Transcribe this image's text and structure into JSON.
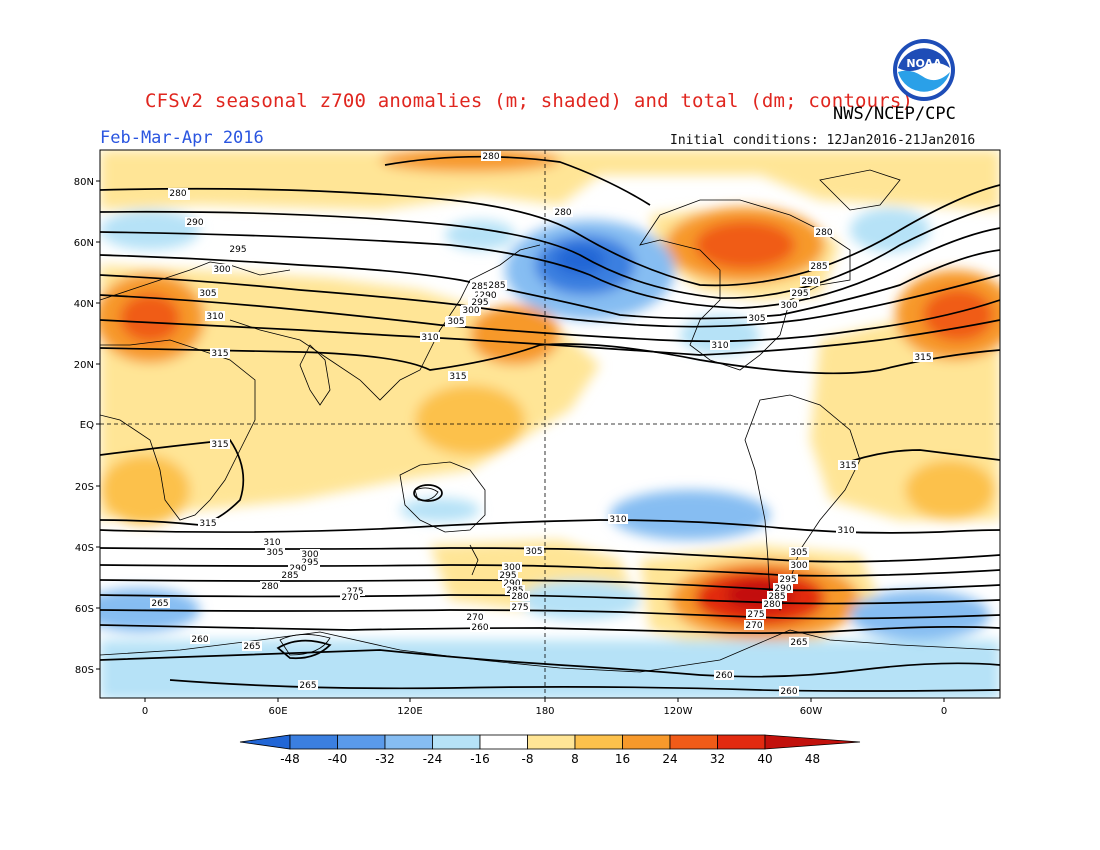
{
  "header": {
    "title": "CFSv2 seasonal z700 anomalies (m; shaded) and total (dm; contours)",
    "agency": "NWS/NCEP/CPC",
    "period": "Feb-Mar-Apr 2016",
    "initial_conditions": "Initial conditions: 12Jan2016-21Jan2016"
  },
  "logo": {
    "text": "NOAA",
    "icon": "noaa-logo"
  },
  "axes": {
    "lat_labels": [
      "80N",
      "60N",
      "40N",
      "20N",
      "EQ",
      "20S",
      "40S",
      "60S",
      "80S"
    ],
    "lon_labels": [
      "0",
      "60E",
      "120E",
      "180",
      "120W",
      "60W",
      "0"
    ]
  },
  "colorbar": {
    "labels": [
      "-48",
      "-40",
      "-32",
      "-24",
      "-16",
      "-8",
      "8",
      "16",
      "24",
      "32",
      "40",
      "48"
    ],
    "colors": [
      "#2166d6",
      "#3b7fe0",
      "#5a9aea",
      "#86bdf2",
      "#b6e2f7",
      "#ffffff",
      "#ffe596",
      "#fcc14c",
      "#f7992b",
      "#f05b18",
      "#e22a10",
      "#c2110c"
    ]
  },
  "contour_labels": [
    {
      "text": "280"
    },
    {
      "text": "285"
    },
    {
      "text": "290"
    },
    {
      "text": "295"
    },
    {
      "text": "300"
    },
    {
      "text": "305"
    },
    {
      "text": "310"
    },
    {
      "text": "315"
    },
    {
      "text": "280"
    },
    {
      "text": "285"
    },
    {
      "text": "290"
    },
    {
      "text": "295"
    },
    {
      "text": "300"
    },
    {
      "text": "305"
    },
    {
      "text": "310"
    },
    {
      "text": "315"
    },
    {
      "text": "280"
    },
    {
      "text": "285"
    },
    {
      "text": "290"
    },
    {
      "text": "295"
    },
    {
      "text": "300"
    },
    {
      "text": "305"
    },
    {
      "text": "310"
    },
    {
      "text": "280"
    },
    {
      "text": "285"
    },
    {
      "text": "290"
    },
    {
      "text": "295"
    },
    {
      "text": "300"
    },
    {
      "text": "305"
    },
    {
      "text": "315"
    },
    {
      "text": "315"
    },
    {
      "text": "315"
    },
    {
      "text": "315"
    },
    {
      "text": "310"
    },
    {
      "text": "305"
    },
    {
      "text": "300"
    },
    {
      "text": "295"
    },
    {
      "text": "290"
    },
    {
      "text": "285"
    },
    {
      "text": "280"
    },
    {
      "text": "275"
    },
    {
      "text": "270"
    },
    {
      "text": "265"
    },
    {
      "text": "260"
    },
    {
      "text": "265"
    },
    {
      "text": "310"
    },
    {
      "text": "305"
    },
    {
      "text": "300"
    },
    {
      "text": "295"
    },
    {
      "text": "290"
    },
    {
      "text": "285"
    },
    {
      "text": "280"
    },
    {
      "text": "275"
    },
    {
      "text": "270"
    },
    {
      "text": "265"
    },
    {
      "text": "260"
    },
    {
      "text": "265"
    },
    {
      "text": "310"
    },
    {
      "text": "305"
    },
    {
      "text": "300"
    },
    {
      "text": "295"
    },
    {
      "text": "290"
    },
    {
      "text": "285"
    },
    {
      "text": "280"
    },
    {
      "text": "275"
    },
    {
      "text": "270"
    },
    {
      "text": "265"
    },
    {
      "text": "260"
    },
    {
      "text": "260"
    }
  ]
}
